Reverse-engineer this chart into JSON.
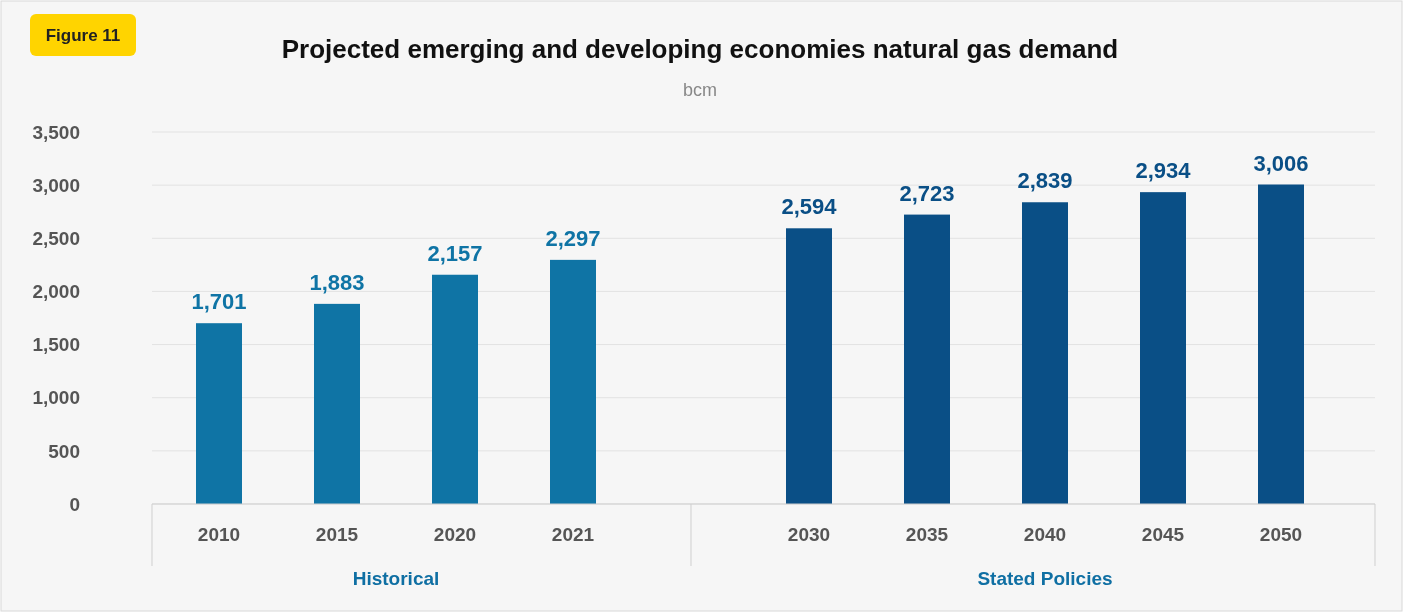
{
  "chart_data": {
    "type": "bar",
    "title": "Projected emerging and developing economies natural gas demand",
    "subtitle": "bcm",
    "categories": [
      "2010",
      "2015",
      "2020",
      "2021",
      null,
      "2030",
      "2035",
      "2040",
      "2045",
      "2050"
    ],
    "values": [
      1701,
      1883,
      2157,
      2297,
      null,
      2594,
      2723,
      2839,
      2934,
      3006
    ],
    "colors": [
      "#0f74a5",
      "#0f74a5",
      "#0f74a5",
      "#0f74a5",
      null,
      "#0a4f86",
      "#0a4f86",
      "#0a4f86",
      "#0a4f86",
      "#0a4f86"
    ],
    "ylim": [
      0,
      3500
    ],
    "yticks": [
      0,
      500,
      {
        "value": 1000,
        "label": "1,000"
      },
      {
        "value": 1500,
        "label": "1,500"
      },
      {
        "value": 2000,
        "label": "2,000"
      },
      {
        "value": 2500,
        "label": "2,500"
      },
      {
        "value": 3000,
        "label": "3,000"
      },
      {
        "value": 3500,
        "label": "3,500"
      }
    ],
    "value_labels": [
      "1,701",
      "1,883",
      "2,157",
      "2,297",
      null,
      "2,594",
      "2,723",
      "2,839",
      "2,934",
      "3,006"
    ],
    "grid": "y",
    "annotations": [
      "Figure 11",
      "Historical",
      "Stated Policies"
    ]
  }
}
